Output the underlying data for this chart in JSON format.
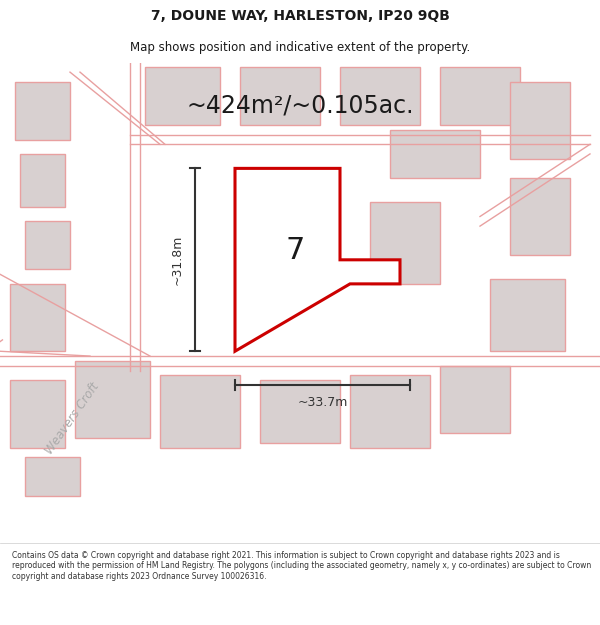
{
  "title_line1": "7, DOUNE WAY, HARLESTON, IP20 9QB",
  "title_line2": "Map shows position and indicative extent of the property.",
  "area_text": "~424m²/~0.105ac.",
  "dim_vertical": "~31.8m",
  "dim_horizontal": "~33.7m",
  "house_number": "7",
  "road_label": "Weavers Croft",
  "footer_text": "Contains OS data © Crown copyright and database right 2021. This information is subject to Crown copyright and database rights 2023 and is reproduced with the permission of HM Land Registry. The polygons (including the associated geometry, namely x, y co-ordinates) are subject to Crown copyright and database rights 2023 Ordnance Survey 100026316.",
  "bg_color": "#ffffff",
  "map_bg": "#f5f0f0",
  "highlight_color": "#cc0000",
  "road_line_color": "#e8a0a0",
  "building_color": "#d8d0d0",
  "building_edge_color": "#e8a0a0",
  "dim_color": "#333333",
  "text_color": "#1a1a1a"
}
